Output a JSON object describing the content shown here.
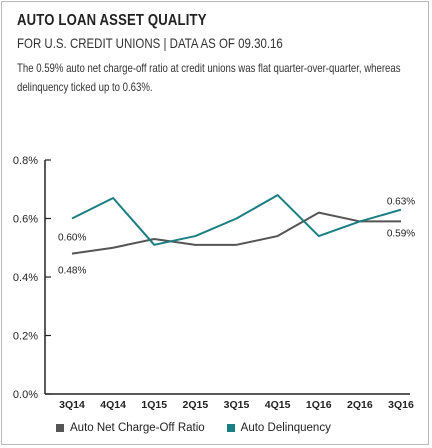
{
  "header": {
    "title": "AUTO LOAN ASSET QUALITY",
    "subtitle": "FOR U.S. CREDIT UNIONS | DATA AS OF 09.30.16",
    "description": "The 0.59% auto net charge-off ratio at credit unions was flat quarter-over-quarter, whereas delinquency ticked up to 0.63%."
  },
  "colors": {
    "charge_off": "#555555",
    "delinquency": "#1a7f82"
  },
  "chart_data": {
    "type": "line",
    "title": "",
    "xlabel": "",
    "ylabel": "",
    "categories": [
      "3Q14",
      "4Q14",
      "1Q15",
      "2Q15",
      "3Q15",
      "4Q15",
      "1Q16",
      "2Q16",
      "3Q16"
    ],
    "ylim": [
      0,
      0.8
    ],
    "yticks": [
      "0.0%",
      "0.2%",
      "0.4%",
      "0.6%",
      "0.8%"
    ],
    "grid": false,
    "legend_position": "bottom",
    "series": [
      {
        "name": "Auto Net Charge-Off Ratio",
        "values": [
          0.48,
          0.5,
          0.53,
          0.51,
          0.51,
          0.54,
          0.62,
          0.59,
          0.59
        ]
      },
      {
        "name": "Auto Delinquency",
        "values": [
          0.6,
          0.67,
          0.51,
          0.54,
          0.6,
          0.68,
          0.54,
          0.59,
          0.63
        ]
      }
    ],
    "annotations": [
      {
        "series": 0,
        "index": 0,
        "text": "0.48%"
      },
      {
        "series": 1,
        "index": 0,
        "text": "0.60%"
      },
      {
        "series": 1,
        "index": 8,
        "text": "0.63%"
      },
      {
        "series": 0,
        "index": 8,
        "text": "0.59%"
      }
    ]
  }
}
